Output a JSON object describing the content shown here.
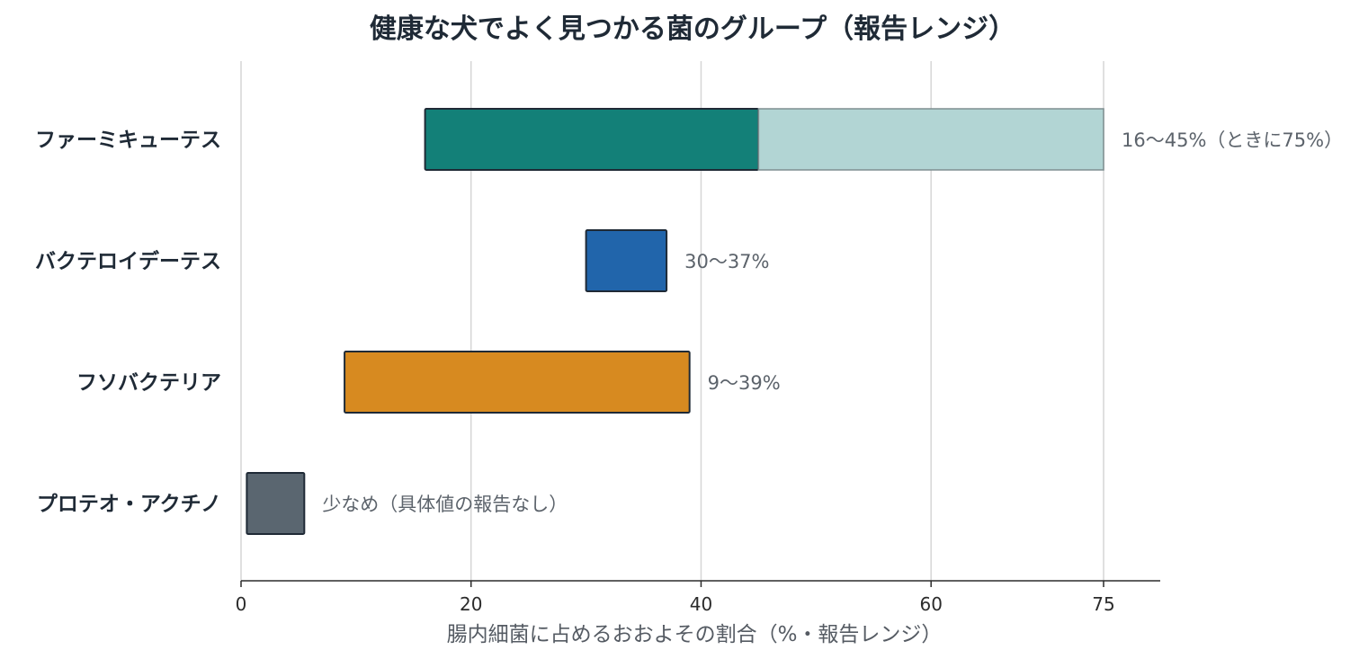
{
  "chart_data": {
    "type": "bar",
    "orientation": "horizontal",
    "title": "健康な犬でよく見つかる菌のグループ（報告レンジ）",
    "xlabel": "腸内細菌に占めるおおよその割合（%・報告レンジ）",
    "ylabel": "",
    "xlim": [
      0,
      80
    ],
    "xticks": [
      0,
      20,
      40,
      60,
      75
    ],
    "grid": true,
    "categories": [
      "ファーミキューテス",
      "バクテロイデーテス",
      "フソバクテリア",
      "プロテオ・アクチノ"
    ],
    "bars": [
      {
        "category": "ファーミキューテス",
        "start": 16,
        "end": 45,
        "color": "#138078",
        "extended_end": 75,
        "extended_color": "#b2d5d4",
        "label": "16〜45%（ときに75%）"
      },
      {
        "category": "バクテロイデーテス",
        "start": 30,
        "end": 37,
        "color": "#2165ab",
        "label": "30〜37%"
      },
      {
        "category": "フソバクテリア",
        "start": 9,
        "end": 39,
        "color": "#d78a20",
        "label": "9〜39%"
      },
      {
        "category": "プロテオ・アクチノ",
        "start": 0.5,
        "end": 5.5,
        "color": "#5a6670",
        "label": "少なめ（具体値の報告なし）"
      }
    ]
  }
}
